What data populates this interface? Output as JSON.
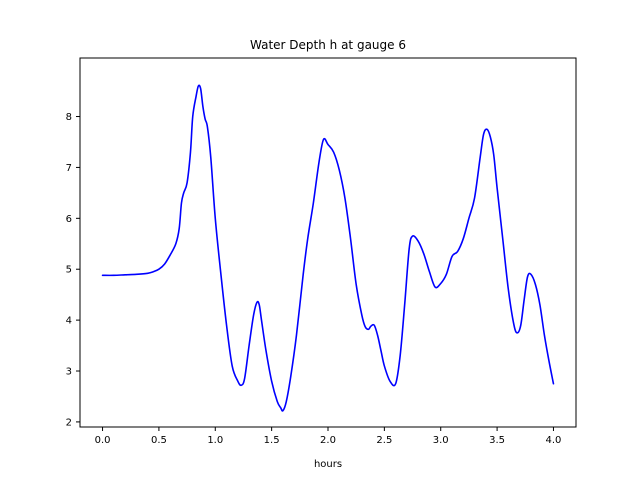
{
  "chart_data": {
    "type": "line",
    "title": "Water Depth h at gauge 6",
    "xlabel": "hours",
    "ylabel": "",
    "xlim": [
      -0.2,
      4.2
    ],
    "ylim": [
      1.9,
      9.15
    ],
    "x_ticks": [
      0.0,
      0.5,
      1.0,
      1.5,
      2.0,
      2.5,
      3.0,
      3.5,
      4.0
    ],
    "x_tick_labels": [
      "0.0",
      "0.5",
      "1.0",
      "1.5",
      "2.0",
      "2.5",
      "3.0",
      "3.5",
      "4.0"
    ],
    "y_ticks": [
      2,
      3,
      4,
      5,
      6,
      7,
      8
    ],
    "y_tick_labels": [
      "2",
      "3",
      "4",
      "5",
      "6",
      "7",
      "8"
    ],
    "grid": false,
    "series": [
      {
        "color": "#0000ff",
        "x": [
          0.0,
          0.1,
          0.2,
          0.3,
          0.4,
          0.45,
          0.5,
          0.55,
          0.6,
          0.65,
          0.68,
          0.7,
          0.72,
          0.75,
          0.78,
          0.8,
          0.83,
          0.85,
          0.87,
          0.89,
          0.91,
          0.93,
          0.96,
          1.0,
          1.05,
          1.1,
          1.15,
          1.2,
          1.23,
          1.26,
          1.3,
          1.34,
          1.37,
          1.39,
          1.41,
          1.45,
          1.5,
          1.55,
          1.58,
          1.6,
          1.63,
          1.67,
          1.72,
          1.78,
          1.82,
          1.87,
          1.92,
          1.96,
          2.0,
          2.05,
          2.1,
          2.15,
          2.2,
          2.25,
          2.3,
          2.33,
          2.36,
          2.38,
          2.41,
          2.44,
          2.47,
          2.5,
          2.55,
          2.6,
          2.64,
          2.68,
          2.72,
          2.75,
          2.8,
          2.85,
          2.9,
          2.95,
          3.0,
          3.05,
          3.1,
          3.15,
          3.2,
          3.25,
          3.3,
          3.35,
          3.38,
          3.41,
          3.44,
          3.47,
          3.5,
          3.55,
          3.6,
          3.65,
          3.68,
          3.71,
          3.74,
          3.77,
          3.8,
          3.84,
          3.88,
          3.92,
          3.96,
          4.0
        ],
        "y": [
          4.88,
          4.88,
          4.89,
          4.9,
          4.92,
          4.95,
          5.0,
          5.1,
          5.28,
          5.5,
          5.8,
          6.3,
          6.5,
          6.7,
          7.3,
          8.0,
          8.4,
          8.6,
          8.55,
          8.2,
          7.95,
          7.8,
          7.2,
          6.0,
          4.9,
          3.9,
          3.1,
          2.8,
          2.72,
          2.85,
          3.5,
          4.1,
          4.35,
          4.3,
          4.0,
          3.4,
          2.8,
          2.4,
          2.28,
          2.22,
          2.4,
          2.9,
          3.7,
          4.9,
          5.6,
          6.3,
          7.1,
          7.55,
          7.45,
          7.3,
          6.95,
          6.4,
          5.6,
          4.7,
          4.1,
          3.87,
          3.82,
          3.88,
          3.9,
          3.7,
          3.4,
          3.1,
          2.8,
          2.75,
          3.3,
          4.3,
          5.4,
          5.65,
          5.55,
          5.3,
          4.95,
          4.65,
          4.72,
          4.9,
          5.25,
          5.35,
          5.6,
          6.0,
          6.4,
          7.2,
          7.65,
          7.75,
          7.6,
          7.25,
          6.6,
          5.6,
          4.6,
          3.9,
          3.75,
          3.9,
          4.4,
          4.85,
          4.9,
          4.7,
          4.3,
          3.7,
          3.2,
          2.75
        ]
      }
    ]
  }
}
